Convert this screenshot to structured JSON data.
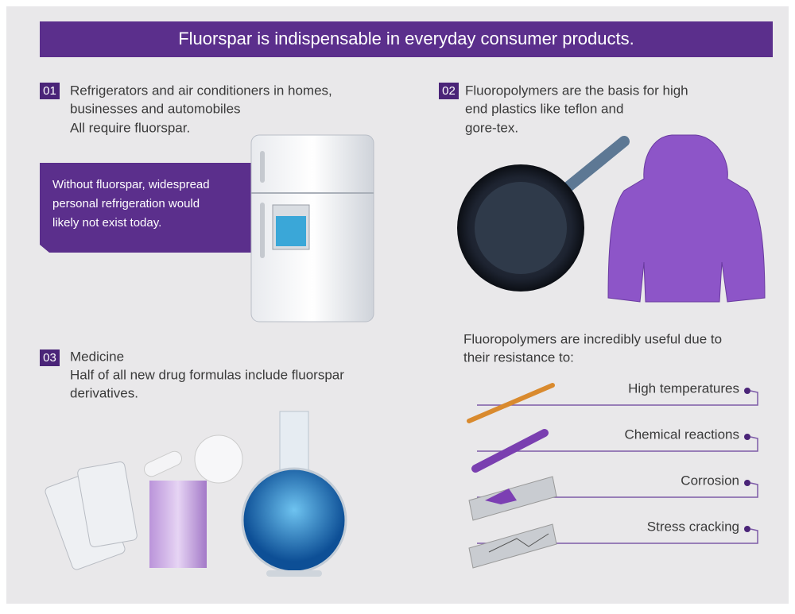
{
  "title": "Fluorspar is indispensable in everyday consumer products.",
  "sections": [
    {
      "number": "01",
      "lines": [
        "Refrigerators and air conditioners in homes,",
        "businesses and automobiles",
        "All require fluorspar."
      ],
      "callout": [
        "Without fluorspar, widespread",
        "personal refrigeration would",
        "likely not exist today."
      ]
    },
    {
      "number": "02",
      "lines": [
        "Fluoropolymers are the basis for high",
        "end plastics like teflon and",
        "gore-tex."
      ]
    },
    {
      "number": "03",
      "lines": [
        "Medicine",
        "Half of all new drug formulas include fluorspar",
        "derivatives."
      ]
    }
  ],
  "resistance": {
    "intro": [
      "Fluoropolymers are incredibly useful due to",
      "their resistance to:"
    ],
    "items": [
      "High temperatures",
      "Chemical reactions",
      "Corrosion",
      "Stress cracking"
    ]
  }
}
